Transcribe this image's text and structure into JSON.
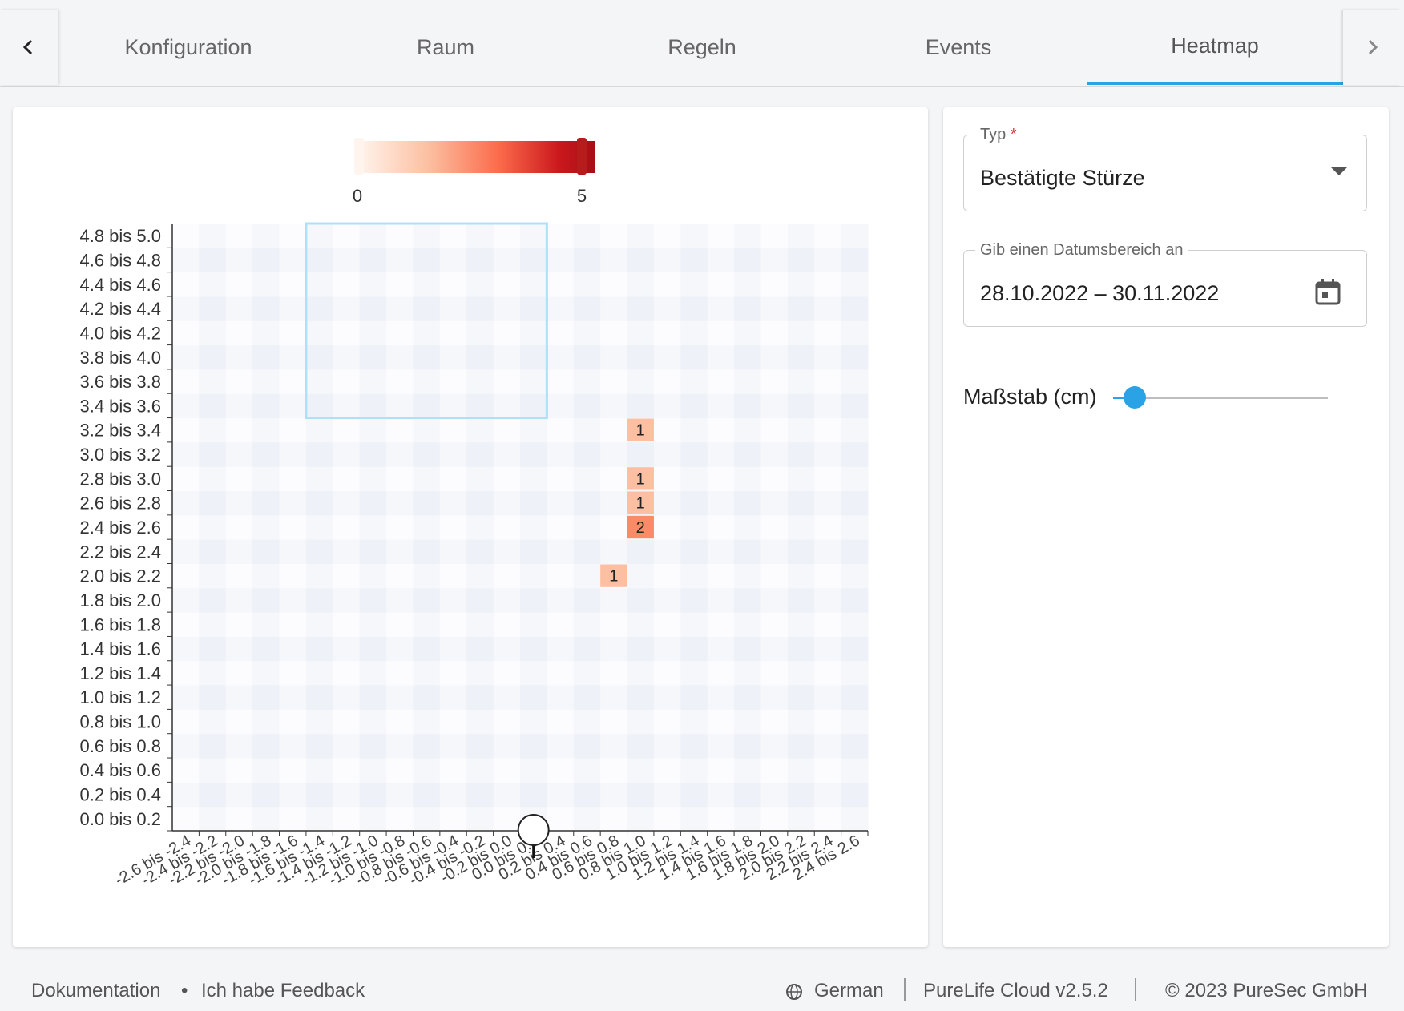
{
  "tabs": {
    "items": [
      {
        "label": "Konfiguration",
        "active": false
      },
      {
        "label": "Raum",
        "active": false
      },
      {
        "label": "Regeln",
        "active": false
      },
      {
        "label": "Events",
        "active": false
      },
      {
        "label": "Heatmap",
        "active": true
      }
    ],
    "prev_icon": "chevron-left-icon",
    "next_icon": "chevron-right-icon"
  },
  "filters": {
    "type": {
      "label": "Typ",
      "required_mark": "*",
      "value": "Bestätigte Stürze"
    },
    "date_range": {
      "label": "Gib einen Datumsbereich an",
      "value": "28.10.2022 – 30.11.2022",
      "icon": "calendar-icon"
    },
    "scale": {
      "label": "Maßstab (cm)",
      "slider_fraction": 0.1
    }
  },
  "chart_data": {
    "type": "heatmap",
    "colorscale": {
      "min_label": "0",
      "max_label": "5",
      "colors": [
        "#fff5ee",
        "#fcbfa1",
        "#fb6a4a",
        "#cb181d",
        "#a50f15"
      ]
    },
    "x_categories": [
      "-2.6 bis -2.4",
      "-2.4 bis -2.2",
      "-2.2 bis -2.0",
      "-2.0 bis -1.8",
      "-1.8 bis -1.6",
      "-1.6 bis -1.4",
      "-1.4 bis -1.2",
      "-1.2 bis -1.0",
      "-1.0 bis -0.8",
      "-0.8 bis -0.6",
      "-0.6 bis -0.4",
      "-0.4 bis -0.2",
      "-0.2 bis 0.0",
      "0.0 bis 0.2",
      "0.2 bis 0.4",
      "0.4 bis 0.6",
      "0.6 bis 0.8",
      "0.8 bis 1.0",
      "1.0 bis 1.2",
      "1.2 bis 1.4",
      "1.4 bis 1.6",
      "1.6 bis 1.8",
      "1.8 bis 2.0",
      "2.0 bis 2.2",
      "2.2 bis 2.4",
      "2.4 bis 2.6"
    ],
    "y_categories": [
      "0.0 bis 0.2",
      "0.2 bis 0.4",
      "0.4 bis 0.6",
      "0.6 bis 0.8",
      "0.8 bis 1.0",
      "1.0 bis 1.2",
      "1.2 bis 1.4",
      "1.4 bis 1.6",
      "1.6 bis 1.8",
      "1.8 bis 2.0",
      "2.0 bis 2.2",
      "2.2 bis 2.4",
      "2.4 bis 2.6",
      "2.6 bis 2.8",
      "2.8 bis 3.0",
      "3.0 bis 3.2",
      "3.2 bis 3.4",
      "3.4 bis 3.6",
      "3.6 bis 3.8",
      "3.8 bis 4.0",
      "4.0 bis 4.2",
      "4.2 bis 4.4",
      "4.4 bis 4.6",
      "4.6 bis 4.8",
      "4.8 bis 5.0"
    ],
    "cells": [
      {
        "x": "0.8 bis 1.0",
        "y": "3.2 bis 3.4",
        "value": 1
      },
      {
        "x": "0.8 bis 1.0",
        "y": "2.8 bis 3.0",
        "value": 1
      },
      {
        "x": "0.8 bis 1.0",
        "y": "2.6 bis 2.8",
        "value": 1
      },
      {
        "x": "0.8 bis 1.0",
        "y": "2.4 bis 2.6",
        "value": 2
      },
      {
        "x": "0.6 bis 0.8",
        "y": "2.0 bis 2.2",
        "value": 1
      }
    ],
    "value_range": [
      0,
      5
    ],
    "region": {
      "x_from": "-1.6 bis -1.4",
      "x_to": "0.0 bis 0.2",
      "y_from": "3.4 bis 3.6",
      "y_to": "4.8 bis 5.0",
      "color": "#aee0f7"
    },
    "marker": {
      "x": "0.0 bis 0.2",
      "y": "0.0 bis 0.2",
      "icon": "sensor-marker-icon"
    }
  },
  "footer": {
    "documentation": "Dokumentation",
    "bullet": "•",
    "feedback": "Ich habe Feedback",
    "language_icon": "globe-icon",
    "language": "German",
    "version": "PureLife Cloud v2.5.2",
    "copyright": "© 2023 PureSec GmbH"
  }
}
